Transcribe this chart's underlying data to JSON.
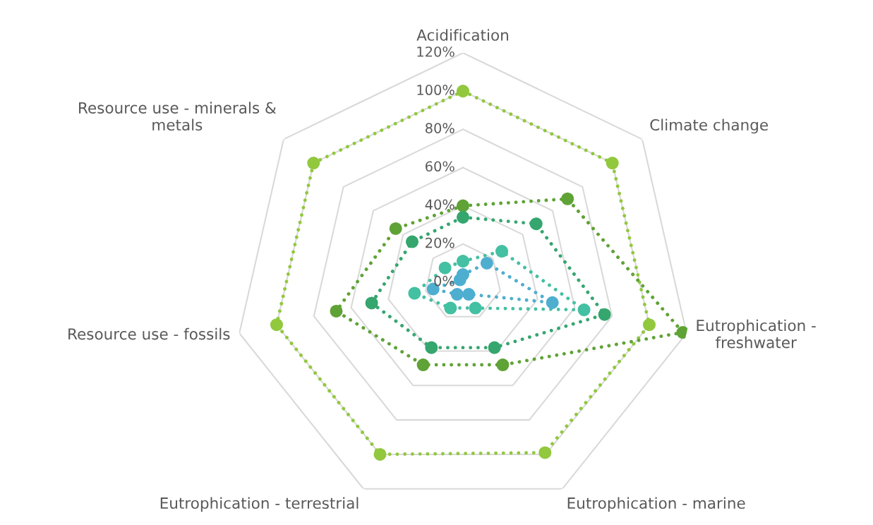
{
  "chart_data": {
    "type": "radar",
    "categories": [
      "Acidification",
      "Climate change",
      "Eutrophication -\nfreshwater",
      "Eutrophication - marine",
      "Eutrophication - terrestrial",
      "Resource use - fossils",
      "Resource use - minerals &\nmetals"
    ],
    "ylim": [
      0,
      120
    ],
    "yticks": [
      {
        "value": 0,
        "label": "0%"
      },
      {
        "value": 20,
        "label": "20%"
      },
      {
        "value": 40,
        "label": "40%"
      },
      {
        "value": 60,
        "label": "60%"
      },
      {
        "value": 80,
        "label": "80%"
      },
      {
        "value": 100,
        "label": "100%"
      },
      {
        "value": 120,
        "label": "120%"
      }
    ],
    "grid": true,
    "legend": false,
    "marker": "circle",
    "line_style": "dotted",
    "series": [
      {
        "color": "#92c83e",
        "values": [
          100,
          100,
          100,
          99,
          100,
          100,
          100
        ]
      },
      {
        "color": "#5fa336",
        "values": [
          40,
          70,
          118,
          48,
          48,
          68,
          45
        ]
      },
      {
        "color": "#35a66e",
        "values": [
          34,
          49,
          76,
          38,
          38,
          49,
          34
        ]
      },
      {
        "color": "#44c0a2",
        "values": [
          11,
          26,
          65,
          15,
          15,
          26,
          12
        ]
      },
      {
        "color": "#4eaed0",
        "values": [
          4,
          16,
          48,
          7,
          7,
          16,
          2
        ]
      }
    ]
  }
}
